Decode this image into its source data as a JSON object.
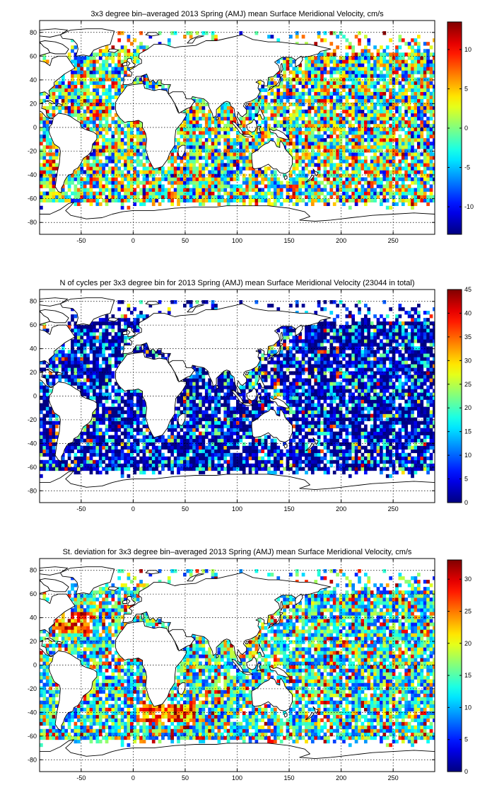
{
  "chart_data": [
    {
      "type": "heatmap",
      "title": "3x3 degree bin–averaged 2013 Spring (AMJ) mean Surface Meridional Velocity, cm/s",
      "xlim": [
        -90,
        290
      ],
      "ylim": [
        -90,
        90
      ],
      "xticks": [
        -50,
        0,
        50,
        100,
        150,
        200,
        250
      ],
      "yticks": [
        80,
        60,
        40,
        20,
        0,
        -20,
        -40,
        -60,
        -80
      ],
      "grid": true,
      "colormap": "jet",
      "colorbar_range": [
        -13.5,
        13.5
      ],
      "colorbar_ticks": [
        10,
        5,
        0,
        -5,
        -10
      ],
      "distribution": "diverging"
    },
    {
      "type": "heatmap",
      "title": "N of cycles per 3x3 degree bin for 2013 Spring (AMJ) mean Surface Meridional Velocity (23044 in total)",
      "xlim": [
        -90,
        290
      ],
      "ylim": [
        -90,
        90
      ],
      "xticks": [
        -50,
        0,
        50,
        100,
        150,
        200,
        250
      ],
      "yticks": [
        80,
        60,
        40,
        20,
        0,
        -20,
        -40,
        -60,
        -80
      ],
      "grid": true,
      "colormap": "jet",
      "colorbar_range": [
        0,
        45
      ],
      "colorbar_ticks": [
        45,
        40,
        35,
        30,
        25,
        20,
        15,
        10,
        5,
        0
      ],
      "distribution": "mostly-low"
    },
    {
      "type": "heatmap",
      "title": "St. deviation for 3x3 degree bin–averaged 2013 Spring (AMJ) mean Surface Meridional Velocity, cm/s",
      "xlim": [
        -90,
        290
      ],
      "ylim": [
        -90,
        90
      ],
      "xticks": [
        -50,
        0,
        50,
        100,
        150,
        200,
        250
      ],
      "yticks": [
        80,
        60,
        40,
        20,
        0,
        -20,
        -40,
        -60,
        -80
      ],
      "grid": true,
      "colormap": "jet",
      "colorbar_range": [
        0,
        33
      ],
      "colorbar_ticks": [
        30,
        25,
        20,
        15,
        10,
        5,
        0
      ],
      "distribution": "spread"
    }
  ]
}
